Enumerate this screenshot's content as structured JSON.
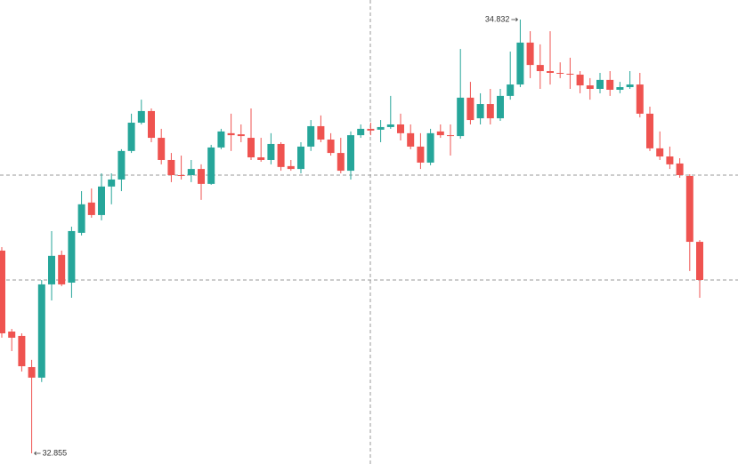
{
  "chart_data": {
    "type": "candlestick",
    "up_color": "#26a69a",
    "down_color": "#ef5350",
    "open": [
      33.779,
      33.41,
      33.39,
      33.248,
      33.2,
      33.625,
      33.759,
      33.633,
      33.86,
      33.998,
      33.941,
      34.071,
      34.103,
      34.233,
      34.362,
      34.415,
      34.293,
      34.192,
      34.123,
      34.123,
      34.151,
      34.083,
      34.249,
      34.314,
      34.309,
      34.293,
      34.204,
      34.192,
      34.265,
      34.164,
      34.151,
      34.253,
      34.346,
      34.285,
      34.224,
      34.143,
      34.305,
      34.334,
      34.33,
      34.342,
      34.354,
      34.314,
      34.253,
      34.18,
      34.322,
      34.305,
      34.301,
      34.476,
      34.382,
      34.447,
      34.382,
      34.484,
      34.536,
      34.727,
      34.625,
      34.597,
      34.589,
      34.585,
      34.581,
      34.532,
      34.516,
      34.557,
      34.512,
      34.524,
      34.536,
      34.403,
      34.245,
      34.208,
      34.176,
      34.119,
      33.819
    ],
    "high": [
      33.795,
      33.422,
      33.402,
      33.281,
      33.645,
      33.868,
      33.779,
      33.888,
      34.05,
      34.062,
      34.131,
      34.131,
      34.241,
      34.403,
      34.467,
      34.427,
      34.334,
      34.224,
      34.212,
      34.192,
      34.172,
      34.261,
      34.334,
      34.403,
      34.354,
      34.427,
      34.293,
      34.314,
      34.273,
      34.192,
      34.273,
      34.374,
      34.395,
      34.314,
      34.293,
      34.322,
      34.354,
      34.362,
      34.374,
      34.484,
      34.403,
      34.354,
      34.314,
      34.334,
      34.354,
      34.354,
      34.698,
      34.548,
      34.496,
      34.516,
      34.516,
      34.686,
      34.832,
      34.779,
      34.719,
      34.779,
      34.637,
      34.658,
      34.597,
      34.565,
      34.589,
      34.597,
      34.548,
      34.597,
      34.589,
      34.435,
      34.322,
      34.253,
      34.2,
      34.127,
      33.827
    ],
    "low": [
      33.382,
      33.321,
      33.228,
      32.855,
      33.18,
      33.552,
      33.617,
      33.564,
      33.848,
      33.929,
      33.917,
      33.99,
      34.05,
      34.224,
      34.354,
      34.273,
      34.172,
      34.091,
      34.103,
      34.091,
      34.01,
      34.079,
      34.241,
      34.233,
      34.273,
      34.192,
      34.184,
      34.172,
      34.143,
      34.143,
      34.131,
      34.233,
      34.273,
      34.212,
      34.131,
      34.103,
      34.293,
      34.305,
      34.273,
      34.334,
      34.281,
      34.241,
      34.151,
      34.168,
      34.293,
      34.212,
      34.289,
      34.354,
      34.354,
      34.354,
      34.37,
      34.467,
      34.524,
      34.565,
      34.516,
      34.536,
      34.565,
      34.516,
      34.496,
      34.467,
      34.496,
      34.484,
      34.496,
      34.516,
      34.386,
      34.233,
      34.192,
      34.151,
      34.111,
      33.686,
      33.564
    ],
    "close": [
      33.402,
      33.382,
      33.252,
      33.2,
      33.625,
      33.755,
      33.625,
      33.868,
      33.99,
      33.941,
      34.071,
      34.103,
      34.233,
      34.362,
      34.415,
      34.293,
      34.192,
      34.123,
      34.119,
      34.151,
      34.083,
      34.249,
      34.322,
      34.305,
      34.301,
      34.204,
      34.192,
      34.265,
      34.16,
      34.151,
      34.253,
      34.346,
      34.285,
      34.224,
      34.143,
      34.305,
      34.334,
      34.326,
      34.342,
      34.354,
      34.314,
      34.253,
      34.18,
      34.314,
      34.305,
      34.301,
      34.476,
      34.374,
      34.447,
      34.382,
      34.484,
      34.536,
      34.727,
      34.625,
      34.597,
      34.589,
      34.585,
      34.581,
      34.532,
      34.516,
      34.557,
      34.512,
      34.524,
      34.536,
      34.403,
      34.245,
      34.208,
      34.172,
      34.123,
      33.819,
      33.645
    ],
    "annotations": [
      {
        "label": "34.832",
        "value": 34.832
      },
      {
        "label": "32.855",
        "value": 32.855
      }
    ]
  }
}
